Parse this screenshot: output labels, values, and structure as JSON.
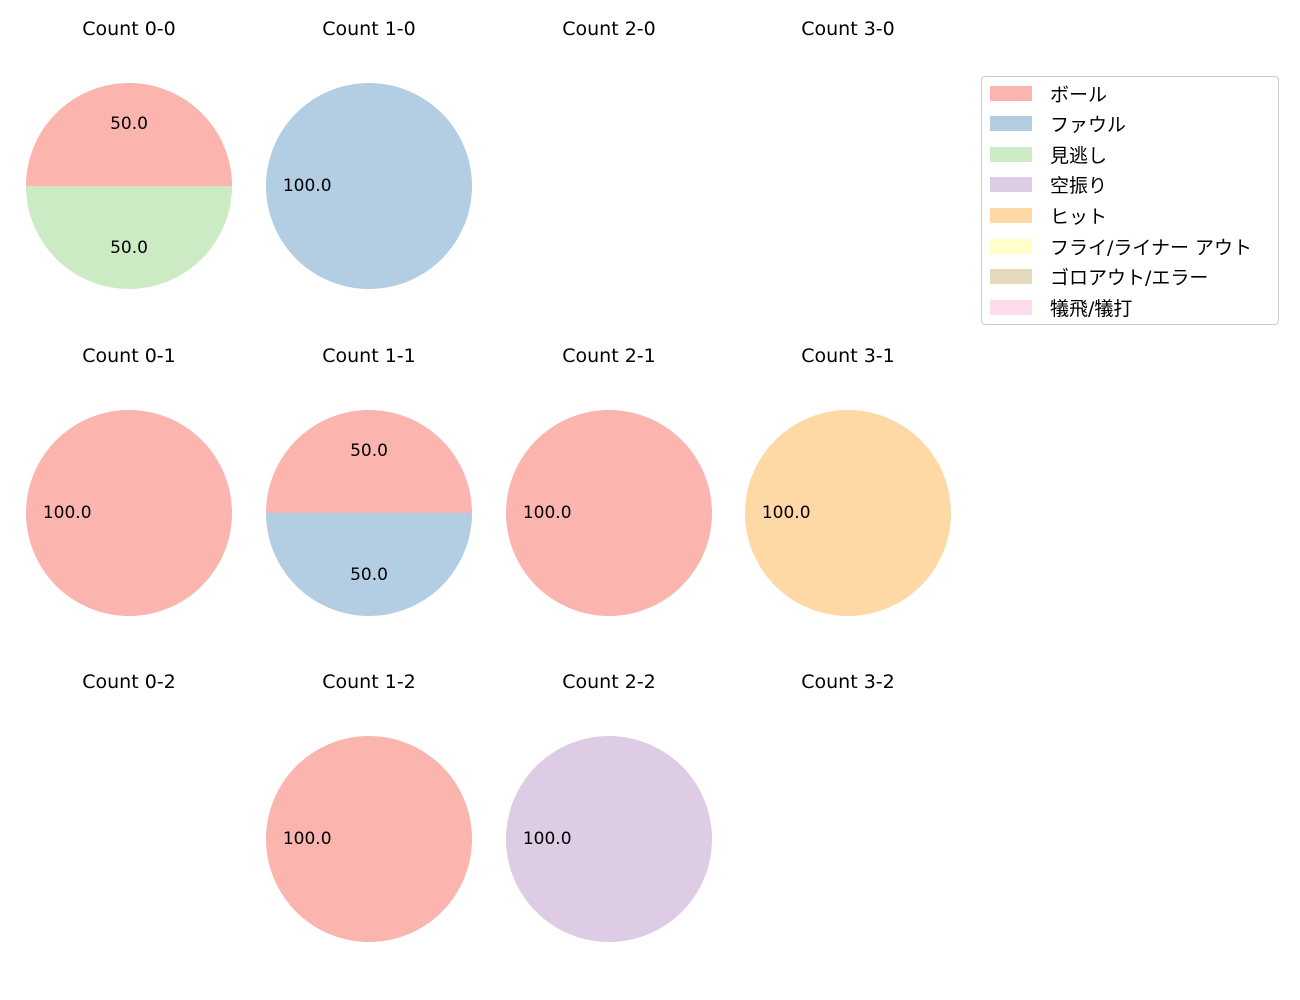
{
  "chart_data": {
    "type": "pie",
    "legend_placement": "top-right",
    "legend": [
      {
        "label": "ボール",
        "color": "#fbb4ae"
      },
      {
        "label": "ファウル",
        "color": "#b3cde3"
      },
      {
        "label": "見逃し",
        "color": "#ccebc5"
      },
      {
        "label": "空振り",
        "color": "#decbe4"
      },
      {
        "label": "ヒット",
        "color": "#fed9a6"
      },
      {
        "label": "フライ/ライナー アウト",
        "color": "#ffffcc"
      },
      {
        "label": "ゴロアウト/エラー",
        "color": "#e5d8bd"
      },
      {
        "label": "犠飛/犠打",
        "color": "#fddaec"
      }
    ],
    "panels": [
      {
        "title": "Count 0-0",
        "slices": [
          {
            "label": "ボール",
            "value": 50.0
          },
          {
            "label": "見逃し",
            "value": 50.0
          }
        ]
      },
      {
        "title": "Count 1-0",
        "slices": [
          {
            "label": "ファウル",
            "value": 100.0
          }
        ]
      },
      {
        "title": "Count 2-0",
        "slices": []
      },
      {
        "title": "Count 3-0",
        "slices": []
      },
      {
        "title": "Count 0-1",
        "slices": [
          {
            "label": "ボール",
            "value": 100.0
          }
        ]
      },
      {
        "title": "Count 1-1",
        "slices": [
          {
            "label": "ボール",
            "value": 50.0
          },
          {
            "label": "ファウル",
            "value": 50.0
          }
        ]
      },
      {
        "title": "Count 2-1",
        "slices": [
          {
            "label": "ボール",
            "value": 100.0
          }
        ]
      },
      {
        "title": "Count 3-1",
        "slices": [
          {
            "label": "ヒット",
            "value": 100.0
          }
        ]
      },
      {
        "title": "Count 0-2",
        "slices": []
      },
      {
        "title": "Count 1-2",
        "slices": [
          {
            "label": "ボール",
            "value": 100.0
          }
        ]
      },
      {
        "title": "Count 2-2",
        "slices": [
          {
            "label": "空振り",
            "value": 100.0
          }
        ]
      },
      {
        "title": "Count 3-2",
        "slices": []
      }
    ]
  }
}
